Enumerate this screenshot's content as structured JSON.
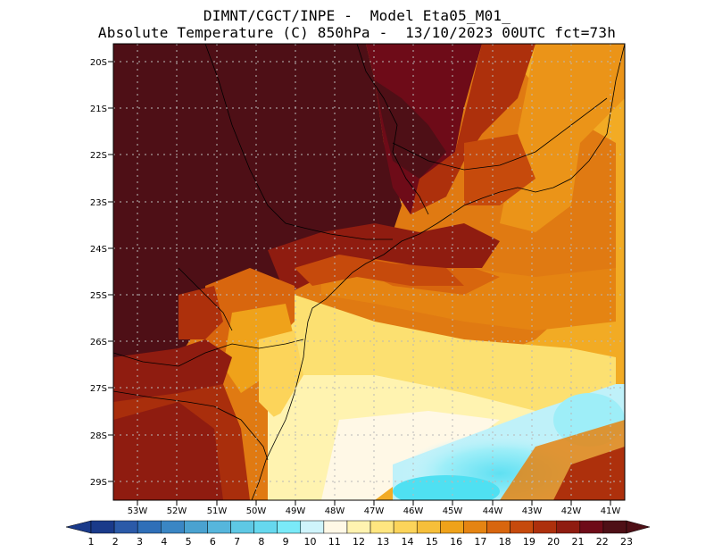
{
  "header": {
    "line1": "DIMNT/CGCT/INPE -  Model Eta05_M01_",
    "line2": "Absolute Temperature (C) 850hPa -  13/10/2023 00UTC fct=73h"
  },
  "map": {
    "lat_labels": [
      "20S",
      "21S",
      "22S",
      "23S",
      "24S",
      "25S",
      "26S",
      "27S",
      "28S",
      "29S"
    ],
    "lon_labels": [
      "53W",
      "52W",
      "51W",
      "50W",
      "49W",
      "48W",
      "47W",
      "46W",
      "45W",
      "44W",
      "43W",
      "42W",
      "41W"
    ]
  },
  "colorbar": {
    "labels": [
      "1",
      "2",
      "3",
      "4",
      "5",
      "6",
      "7",
      "8",
      "9",
      "10",
      "11",
      "12",
      "13",
      "14",
      "15",
      "16",
      "17",
      "18",
      "19",
      "20",
      "21",
      "22",
      "23"
    ],
    "colors": [
      "#1a3a8a",
      "#2b5aa8",
      "#2f6fb8",
      "#3a86c4",
      "#4aa2d0",
      "#56b6dc",
      "#5ec8e4",
      "#66d8ee",
      "#7aeaf8",
      "#cff4fb",
      "#fff8e6",
      "#fff3b0",
      "#ffe680",
      "#fcd45a",
      "#f6bf3a",
      "#efa21a",
      "#e58412",
      "#d8660e",
      "#c64a0c",
      "#ad300c",
      "#8f1c10",
      "#6e0b18",
      "#4e0f16"
    ]
  }
}
